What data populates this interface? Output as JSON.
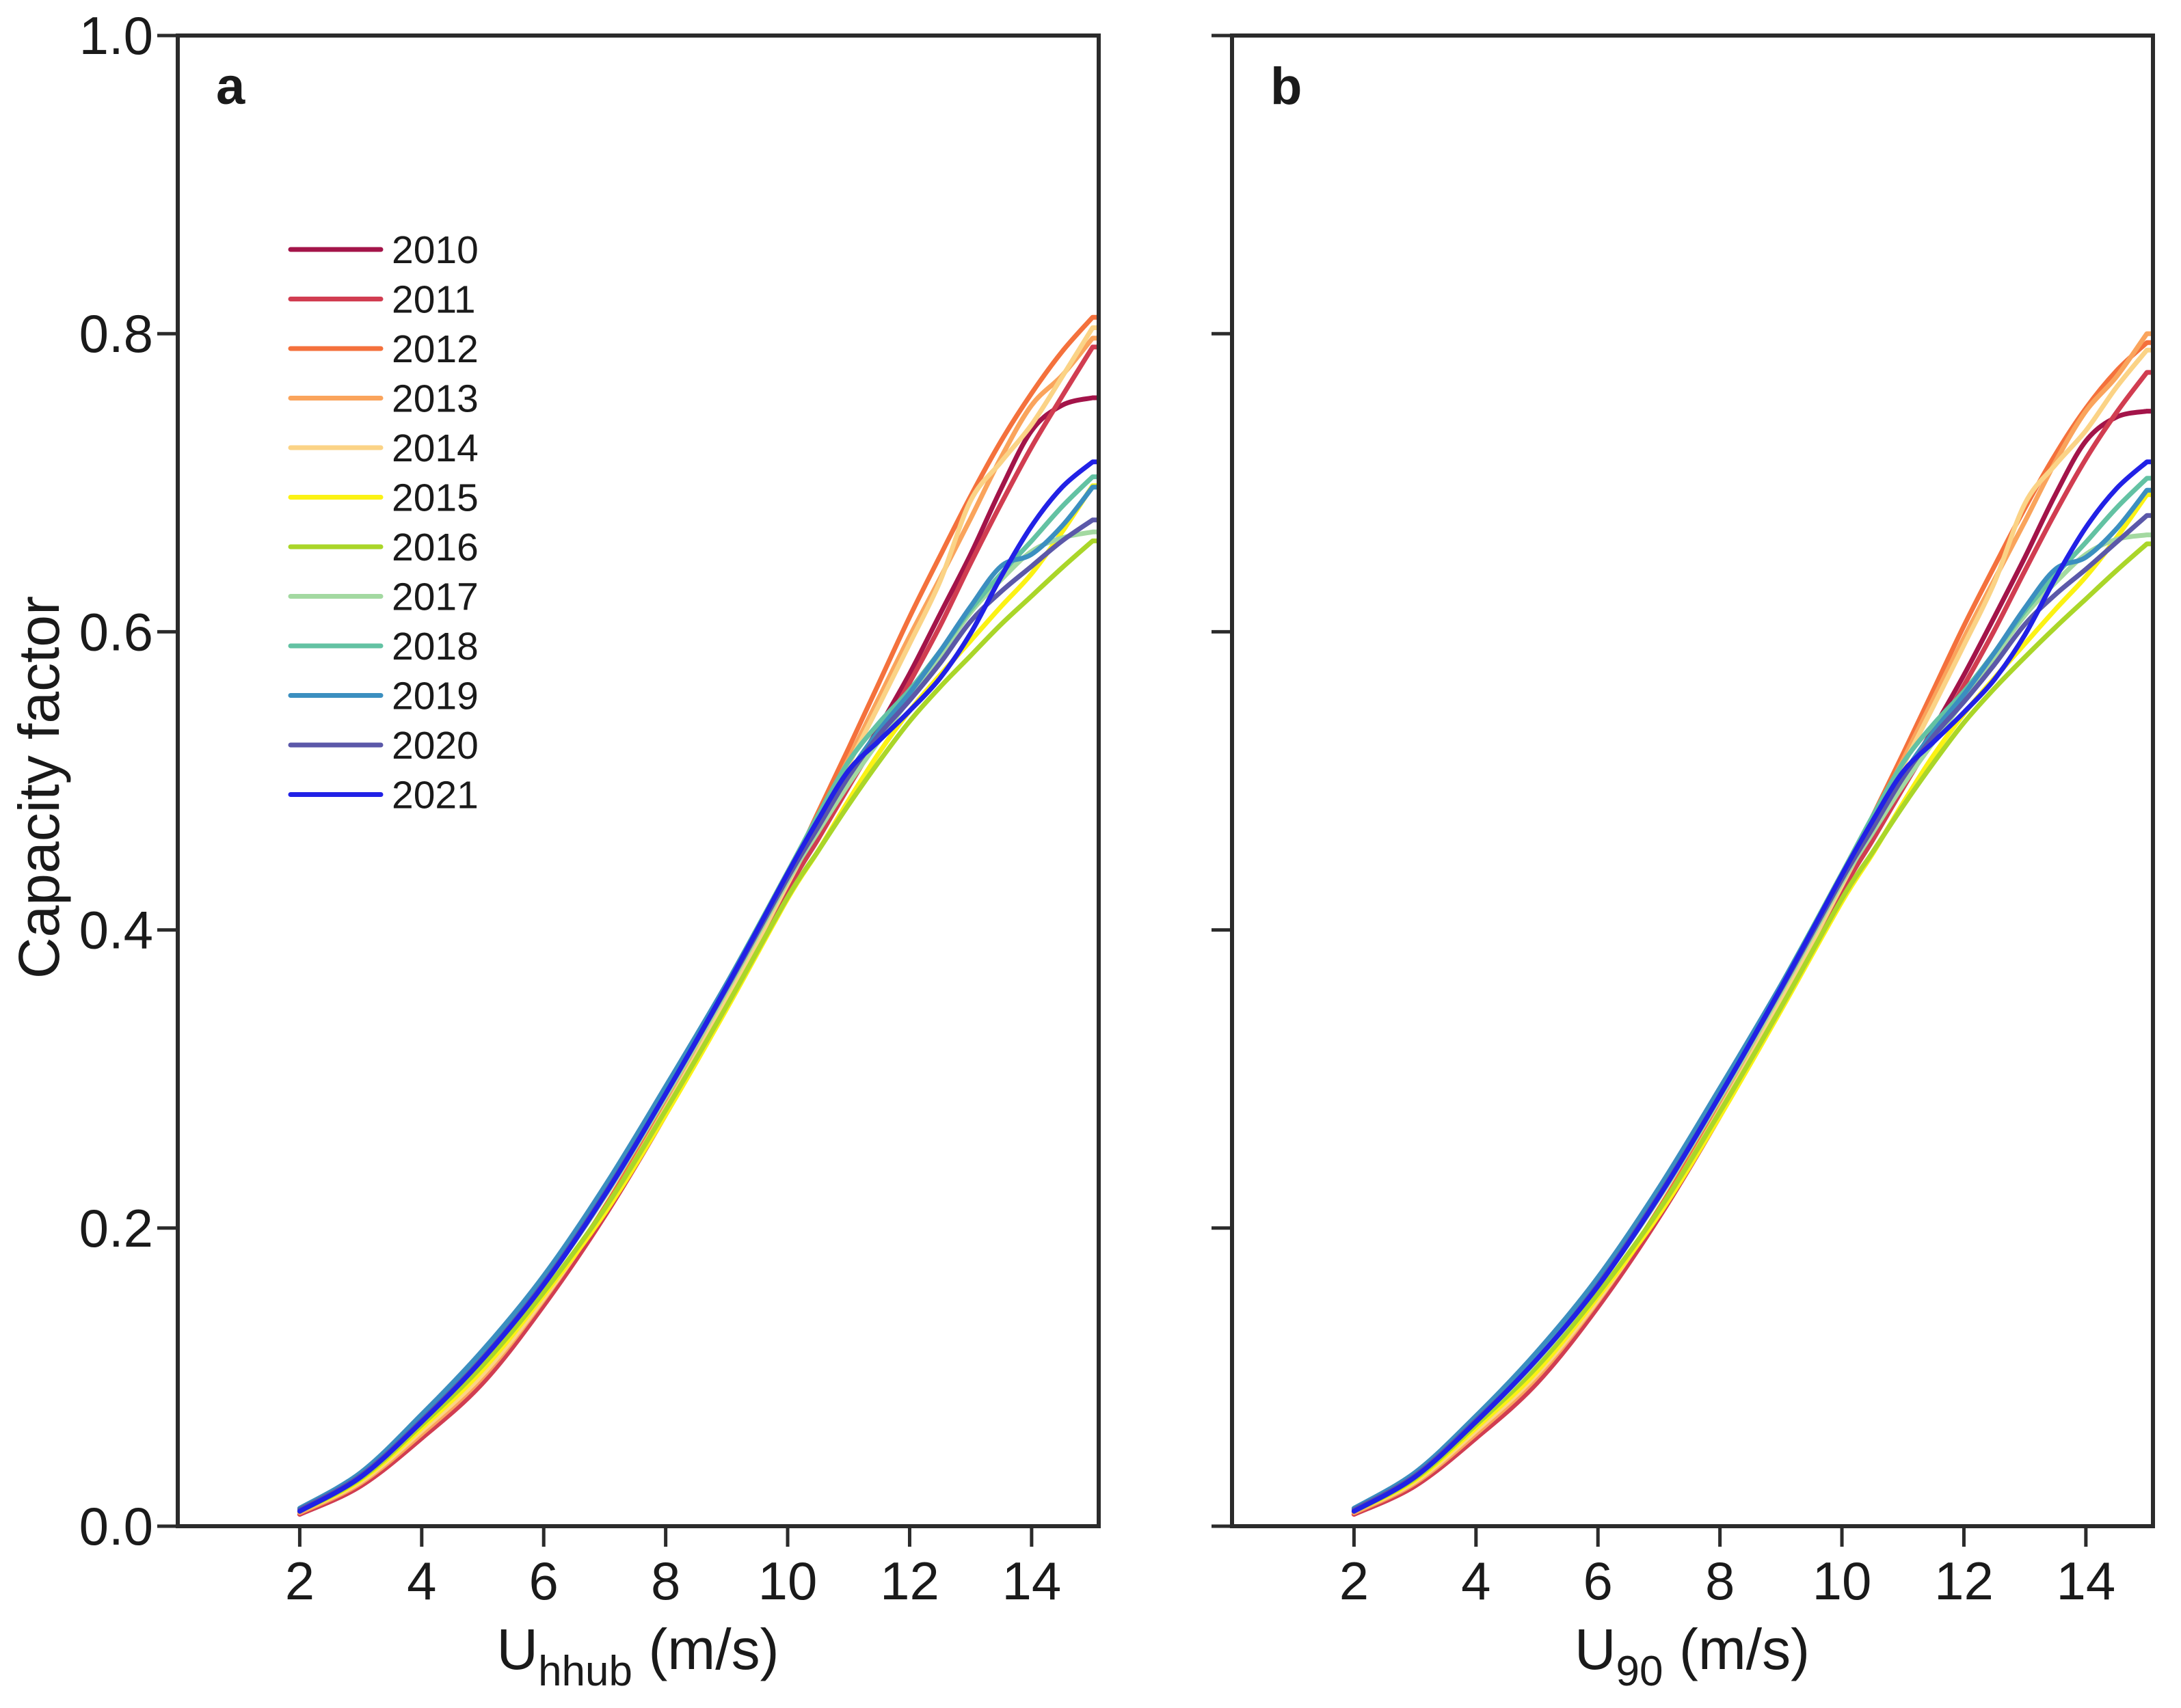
{
  "figure": {
    "background": "#ffffff",
    "axis_color": "#2b2b2b",
    "text_color": "#1a1a1a",
    "ylabel": "Capacity factor",
    "panels": [
      {
        "label": "a",
        "xlabel_base": "U",
        "xlabel_sub": "hhub",
        "xlabel_unit": " (m/s)"
      },
      {
        "label": "b",
        "xlabel_base": "U",
        "xlabel_sub": "90",
        "xlabel_unit": " (m/s)"
      }
    ]
  },
  "chart_data": [
    {
      "type": "line",
      "panel": "a",
      "title": "",
      "xlabel": "U_hhub (m/s)",
      "ylabel": "Capacity factor",
      "xlim": [
        0,
        15.1
      ],
      "ylim": [
        0.0,
        1.0
      ],
      "grid": false,
      "x_ticks": [
        2,
        4,
        6,
        8,
        10,
        12,
        14
      ],
      "y_tick_labels": [
        "0.0",
        "0.2",
        "0.4",
        "0.6",
        "0.8",
        "1.0"
      ],
      "legend": {
        "position": "upper-left",
        "entries": [
          "2010",
          "2011",
          "2012",
          "2013",
          "2014",
          "2015",
          "2016",
          "2017",
          "2018",
          "2019",
          "2020",
          "2021"
        ]
      },
      "x": [
        2,
        3,
        4,
        5,
        6,
        7,
        8,
        9,
        10,
        10.5,
        11,
        11.5,
        12,
        12.5,
        13,
        13.5,
        14,
        14.5,
        15
      ],
      "series": [
        {
          "name": "2010",
          "color": "#A31449",
          "values": [
            0.008,
            0.027,
            0.06,
            0.098,
            0.15,
            0.21,
            0.278,
            0.352,
            0.43,
            0.466,
            0.502,
            0.536,
            0.572,
            0.612,
            0.652,
            0.696,
            0.735,
            0.752,
            0.757
          ]
        },
        {
          "name": "2011",
          "color": "#D13D51",
          "values": [
            0.008,
            0.027,
            0.059,
            0.096,
            0.148,
            0.208,
            0.276,
            0.349,
            0.427,
            0.461,
            0.496,
            0.53,
            0.566,
            0.604,
            0.646,
            0.686,
            0.724,
            0.758,
            0.791
          ]
        },
        {
          "name": "2012",
          "color": "#F4713C",
          "values": [
            0.009,
            0.029,
            0.063,
            0.101,
            0.153,
            0.214,
            0.283,
            0.357,
            0.436,
            0.479,
            0.522,
            0.566,
            0.61,
            0.651,
            0.691,
            0.728,
            0.76,
            0.788,
            0.811
          ]
        },
        {
          "name": "2013",
          "color": "#FAA45C",
          "values": [
            0.009,
            0.029,
            0.062,
            0.1,
            0.152,
            0.212,
            0.281,
            0.355,
            0.433,
            0.474,
            0.515,
            0.556,
            0.597,
            0.636,
            0.676,
            0.717,
            0.752,
            0.772,
            0.797
          ]
        },
        {
          "name": "2014",
          "color": "#FBD386",
          "values": [
            0.01,
            0.03,
            0.064,
            0.102,
            0.153,
            0.212,
            0.28,
            0.353,
            0.431,
            0.47,
            0.511,
            0.551,
            0.592,
            0.634,
            0.688,
            0.714,
            0.739,
            0.771,
            0.804
          ]
        },
        {
          "name": "2015",
          "color": "#FBF214",
          "values": [
            0.01,
            0.031,
            0.066,
            0.105,
            0.155,
            0.21,
            0.276,
            0.347,
            0.421,
            0.453,
            0.487,
            0.519,
            0.547,
            0.571,
            0.594,
            0.617,
            0.639,
            0.667,
            0.698
          ]
        },
        {
          "name": "2016",
          "color": "#AAD629",
          "values": [
            0.01,
            0.032,
            0.068,
            0.108,
            0.157,
            0.213,
            0.279,
            0.349,
            0.422,
            0.453,
            0.484,
            0.513,
            0.54,
            0.563,
            0.584,
            0.605,
            0.624,
            0.643,
            0.661
          ]
        },
        {
          "name": "2017",
          "color": "#A3D9A1",
          "values": [
            0.011,
            0.033,
            0.07,
            0.112,
            0.162,
            0.221,
            0.288,
            0.359,
            0.433,
            0.466,
            0.498,
            0.527,
            0.555,
            0.584,
            0.613,
            0.635,
            0.654,
            0.663,
            0.667
          ]
        },
        {
          "name": "2018",
          "color": "#63C2A3",
          "values": [
            0.012,
            0.035,
            0.073,
            0.116,
            0.166,
            0.226,
            0.293,
            0.364,
            0.439,
            0.477,
            0.513,
            0.539,
            0.561,
            0.587,
            0.615,
            0.639,
            0.661,
            0.684,
            0.704
          ]
        },
        {
          "name": "2019",
          "color": "#3B8FC0",
          "values": [
            0.012,
            0.036,
            0.075,
            0.118,
            0.168,
            0.228,
            0.295,
            0.364,
            0.437,
            0.471,
            0.505,
            0.534,
            0.559,
            0.587,
            0.617,
            0.644,
            0.652,
            0.671,
            0.697
          ]
        },
        {
          "name": "2020",
          "color": "#5B58A9",
          "values": [
            0.011,
            0.034,
            0.071,
            0.113,
            0.163,
            0.223,
            0.29,
            0.361,
            0.435,
            0.469,
            0.503,
            0.531,
            0.554,
            0.579,
            0.607,
            0.627,
            0.644,
            0.661,
            0.675
          ]
        },
        {
          "name": "2021",
          "color": "#2121E6",
          "values": [
            0.01,
            0.033,
            0.07,
            0.112,
            0.162,
            0.222,
            0.29,
            0.362,
            0.438,
            0.474,
            0.507,
            0.527,
            0.547,
            0.569,
            0.599,
            0.637,
            0.671,
            0.697,
            0.714
          ]
        }
      ]
    },
    {
      "type": "line",
      "panel": "b",
      "title": "",
      "xlabel": "U_90 (m/s)",
      "ylabel": "Capacity factor",
      "xlim": [
        0,
        15.1
      ],
      "ylim": [
        0.0,
        1.0
      ],
      "grid": false,
      "x_ticks": [
        2,
        4,
        6,
        8,
        10,
        12,
        14
      ],
      "y_tick_labels": [
        "0.0",
        "0.2",
        "0.4",
        "0.6",
        "0.8",
        "1.0"
      ],
      "legend": null,
      "x": [
        2,
        3,
        4,
        5,
        6,
        7,
        8,
        9,
        10,
        10.5,
        11,
        11.5,
        12,
        12.5,
        13,
        13.5,
        14,
        14.5,
        15
      ],
      "series": [
        {
          "name": "2010",
          "color": "#A31449",
          "values": [
            0.008,
            0.027,
            0.06,
            0.097,
            0.149,
            0.209,
            0.277,
            0.351,
            0.429,
            0.465,
            0.501,
            0.535,
            0.571,
            0.61,
            0.65,
            0.692,
            0.728,
            0.744,
            0.748
          ]
        },
        {
          "name": "2011",
          "color": "#D13D51",
          "values": [
            0.008,
            0.027,
            0.059,
            0.096,
            0.147,
            0.207,
            0.275,
            0.348,
            0.426,
            0.46,
            0.495,
            0.529,
            0.564,
            0.601,
            0.641,
            0.68,
            0.716,
            0.747,
            0.774
          ]
        },
        {
          "name": "2012",
          "color": "#F4713C",
          "values": [
            0.009,
            0.029,
            0.063,
            0.101,
            0.152,
            0.213,
            0.282,
            0.356,
            0.434,
            0.476,
            0.518,
            0.561,
            0.604,
            0.644,
            0.683,
            0.719,
            0.75,
            0.775,
            0.794
          ]
        },
        {
          "name": "2013",
          "color": "#FAA45C",
          "values": [
            0.009,
            0.029,
            0.062,
            0.1,
            0.151,
            0.211,
            0.28,
            0.354,
            0.432,
            0.473,
            0.514,
            0.555,
            0.596,
            0.635,
            0.674,
            0.714,
            0.748,
            0.771,
            0.8
          ]
        },
        {
          "name": "2014",
          "color": "#FBD386",
          "values": [
            0.01,
            0.03,
            0.064,
            0.102,
            0.152,
            0.211,
            0.279,
            0.352,
            0.43,
            0.469,
            0.51,
            0.55,
            0.591,
            0.633,
            0.686,
            0.712,
            0.735,
            0.764,
            0.789
          ]
        },
        {
          "name": "2015",
          "color": "#FBF214",
          "values": [
            0.01,
            0.031,
            0.066,
            0.104,
            0.154,
            0.209,
            0.275,
            0.346,
            0.419,
            0.451,
            0.485,
            0.517,
            0.545,
            0.569,
            0.592,
            0.615,
            0.637,
            0.663,
            0.692
          ]
        },
        {
          "name": "2016",
          "color": "#AAD629",
          "values": [
            0.01,
            0.032,
            0.068,
            0.107,
            0.156,
            0.212,
            0.278,
            0.348,
            0.421,
            0.452,
            0.483,
            0.512,
            0.539,
            0.562,
            0.583,
            0.603,
            0.622,
            0.641,
            0.659
          ]
        },
        {
          "name": "2017",
          "color": "#A3D9A1",
          "values": [
            0.011,
            0.033,
            0.07,
            0.111,
            0.161,
            0.22,
            0.287,
            0.358,
            0.432,
            0.465,
            0.497,
            0.526,
            0.554,
            0.583,
            0.611,
            0.633,
            0.652,
            0.662,
            0.665
          ]
        },
        {
          "name": "2018",
          "color": "#63C2A3",
          "values": [
            0.012,
            0.035,
            0.073,
            0.115,
            0.165,
            0.225,
            0.292,
            0.363,
            0.438,
            0.476,
            0.512,
            0.538,
            0.56,
            0.586,
            0.614,
            0.638,
            0.66,
            0.683,
            0.703
          ]
        },
        {
          "name": "2019",
          "color": "#3B8FC0",
          "values": [
            0.012,
            0.036,
            0.074,
            0.117,
            0.167,
            0.227,
            0.294,
            0.363,
            0.436,
            0.47,
            0.504,
            0.533,
            0.558,
            0.586,
            0.616,
            0.642,
            0.65,
            0.669,
            0.695
          ]
        },
        {
          "name": "2020",
          "color": "#5B58A9",
          "values": [
            0.011,
            0.034,
            0.071,
            0.112,
            0.162,
            0.222,
            0.289,
            0.36,
            0.434,
            0.468,
            0.502,
            0.53,
            0.553,
            0.578,
            0.605,
            0.625,
            0.642,
            0.66,
            0.678
          ]
        },
        {
          "name": "2021",
          "color": "#2121E6",
          "values": [
            0.01,
            0.033,
            0.07,
            0.112,
            0.161,
            0.221,
            0.289,
            0.361,
            0.437,
            0.473,
            0.506,
            0.526,
            0.546,
            0.568,
            0.598,
            0.636,
            0.67,
            0.696,
            0.714
          ]
        }
      ]
    }
  ]
}
